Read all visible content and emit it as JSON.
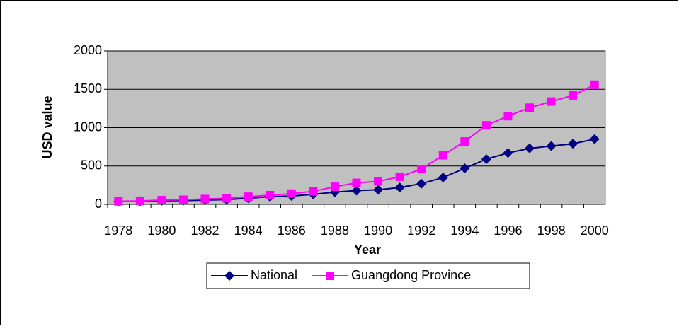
{
  "chart_data": {
    "type": "line",
    "xlabel": "Year",
    "ylabel": "USD value",
    "categories": [
      "1978",
      null,
      "1980",
      null,
      "1982",
      null,
      "1984",
      null,
      "1986",
      null,
      "1988",
      null,
      "1990",
      null,
      "1992",
      null,
      "1994",
      null,
      "1996",
      null,
      "1998",
      null,
      "2000"
    ],
    "series": [
      {
        "name": "National",
        "color": "#000080",
        "marker": "diamond",
        "values": [
          38,
          42,
          47,
          50,
          55,
          62,
          80,
          100,
          110,
          130,
          160,
          180,
          190,
          220,
          270,
          350,
          470,
          590,
          670,
          730,
          760,
          790,
          850
        ]
      },
      {
        "name": "Guangdong Province",
        "color": "#ff00ff",
        "marker": "square",
        "values": [
          40,
          45,
          55,
          60,
          70,
          80,
          100,
          120,
          140,
          170,
          230,
          280,
          300,
          360,
          460,
          640,
          820,
          1030,
          1150,
          1260,
          1340,
          1420,
          1560
        ]
      }
    ],
    "ylim": [
      0,
      2000
    ],
    "yticks": [
      0,
      500,
      1000,
      1500,
      2000
    ],
    "grid": true,
    "legend": "bottom"
  }
}
